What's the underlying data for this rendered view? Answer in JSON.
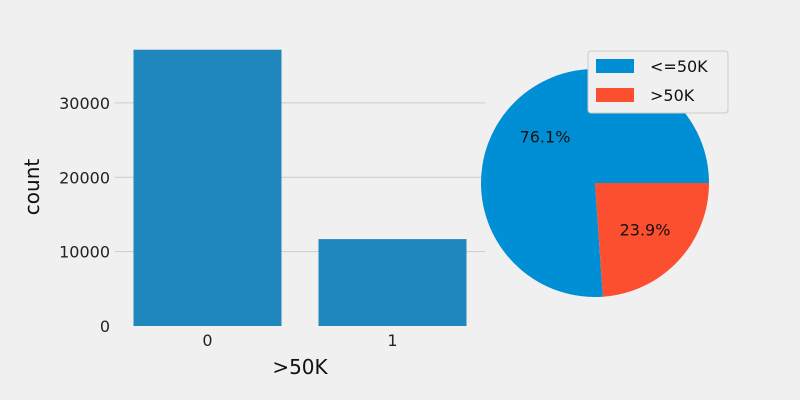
{
  "chart_data": [
    {
      "type": "bar",
      "x": [
        "0",
        "1"
      ],
      "values": [
        37155,
        11687
      ],
      "xlabel": ">50K",
      "ylabel": "count",
      "yticks": [
        0,
        10000,
        20000,
        30000
      ],
      "ytick_labels": [
        "0",
        "10000",
        "20000",
        "30000"
      ],
      "ylim": [
        0,
        39000
      ],
      "grid": "horizontal",
      "bar_color": "#1f87be"
    },
    {
      "type": "pie",
      "labels": [
        "<=50K",
        ">50K"
      ],
      "values": [
        76.1,
        23.9
      ],
      "pct_labels": [
        "76.1%",
        "23.9%"
      ],
      "colors": [
        "#008fd5",
        "#fc4f30"
      ],
      "legend": "top-right"
    }
  ]
}
